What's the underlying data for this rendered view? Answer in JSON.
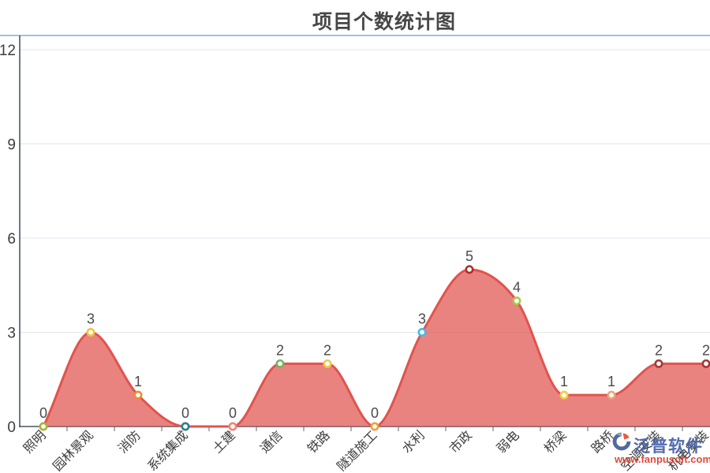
{
  "title": "项目个数统计图",
  "watermark": {
    "brand": "泛普软件",
    "url": "www.fanpusoft.com"
  },
  "chart_data": {
    "type": "area",
    "title": "项目个数统计图",
    "categories": [
      "照明",
      "园林景观",
      "消防",
      "系统集成",
      "土建",
      "通信",
      "铁路",
      "隧道施工",
      "水利",
      "市政",
      "弱电",
      "桥梁",
      "路桥",
      "空调安装",
      "机电安装"
    ],
    "values": [
      0,
      3,
      1,
      0,
      0,
      2,
      2,
      0,
      3,
      5,
      4,
      1,
      1,
      2,
      2
    ],
    "point_colors": [
      "#a8b23c",
      "#f3c33c",
      "#ee8c30",
      "#2e7e8a",
      "#f0837a",
      "#74b55c",
      "#eec84e",
      "#f0a03a",
      "#44bce4",
      "#aa3028",
      "#a6cb4a",
      "#f2cf3a",
      "#f0a478",
      "#a83830",
      "#a83830"
    ],
    "y_ticks": [
      0,
      3,
      6,
      9,
      12
    ],
    "ylim": [
      0,
      12
    ],
    "xlabel": "",
    "ylabel": "",
    "grid": true,
    "legend": "none",
    "line_color": "#e1534e",
    "fill_color": "rgba(225,83,78,0.72)",
    "grid_color": "#e1e5f0",
    "axis_color": "#4d5466",
    "tick_color": "#5c6476",
    "value_label_color": "#4a4a4a",
    "axis_label_color": "#3c3c3c",
    "top_border_color": "#9cc3e3"
  }
}
